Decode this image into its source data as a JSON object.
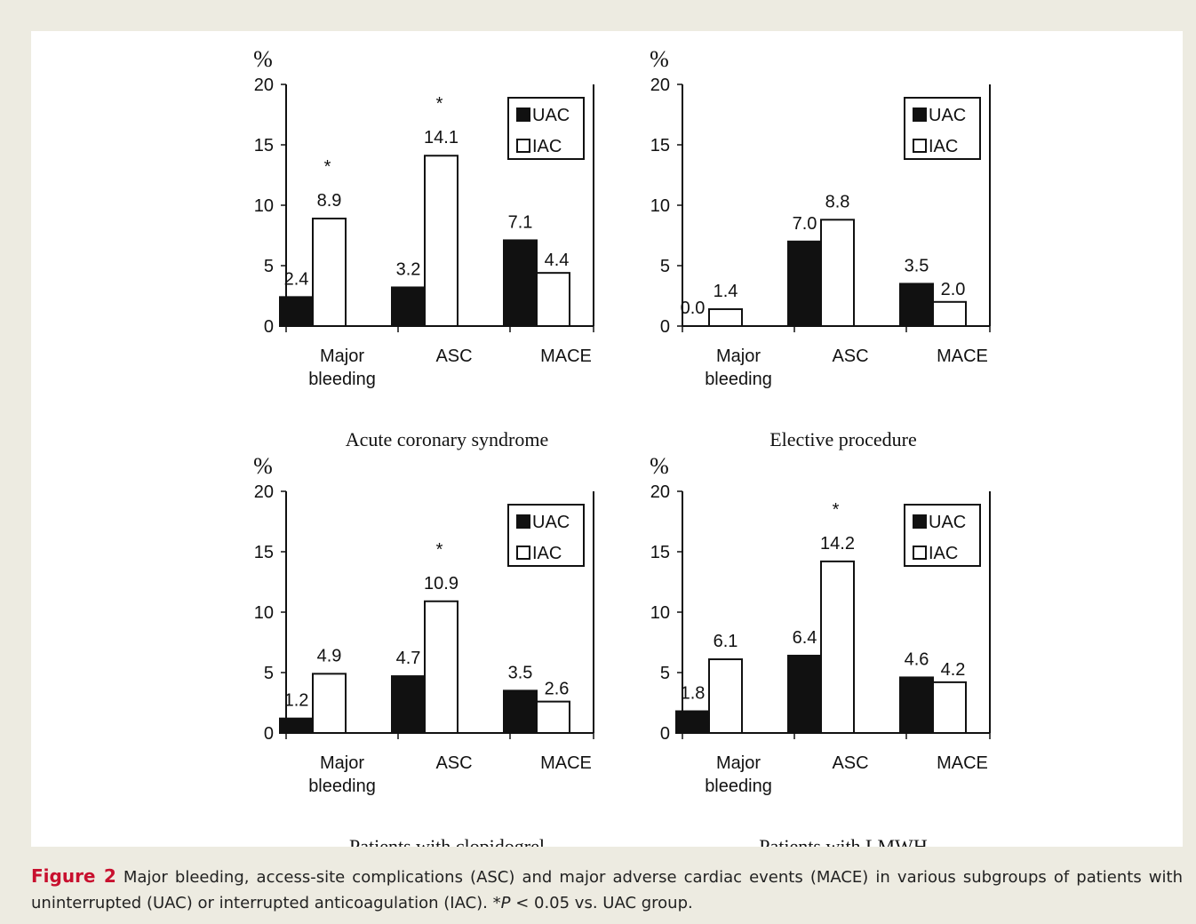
{
  "caption": {
    "label": "Figure 2",
    "text_before_p": " Major bleeding, access-site complications (ASC) and major adverse cardiac events (MACE) in various subgroups of patients with uninterrupted (UAC) or interrupted anticoagulation (IAC). *",
    "p_symbol": "P",
    "text_after_p": " < 0.05 vs. UAC group."
  },
  "colors": {
    "uac": "#111111",
    "iac": "#ffffff",
    "axis": "#111111",
    "background": "#edebe1"
  },
  "chart_data": [
    {
      "type": "bar",
      "title": "Acute coronary syndrome",
      "ylabel": "%",
      "ylim": [
        0,
        20
      ],
      "yticks": [
        0,
        5,
        10,
        15,
        20
      ],
      "categories": [
        "Major bleeding",
        "ASC",
        "MACE"
      ],
      "category_lines": [
        [
          "Major",
          "bleeding"
        ],
        [
          "ASC"
        ],
        [
          "MACE"
        ]
      ],
      "series": [
        {
          "name": "UAC",
          "values": [
            2.4,
            3.2,
            7.1
          ],
          "labels": [
            "2.4",
            "3.2",
            "7.1"
          ]
        },
        {
          "name": "IAC",
          "values": [
            8.9,
            14.1,
            4.4
          ],
          "labels": [
            "8.9",
            "14.1",
            "4.4"
          ]
        }
      ],
      "significant": [
        true,
        true,
        false
      ],
      "significance_marker": "*",
      "legend_position": "top-right",
      "grid": false
    },
    {
      "type": "bar",
      "title": "Elective procedure",
      "ylabel": "%",
      "ylim": [
        0,
        20
      ],
      "yticks": [
        0,
        5,
        10,
        15,
        20
      ],
      "categories": [
        "Major bleeding",
        "ASC",
        "MACE"
      ],
      "category_lines": [
        [
          "Major",
          "bleeding"
        ],
        [
          "ASC"
        ],
        [
          "MACE"
        ]
      ],
      "series": [
        {
          "name": "UAC",
          "values": [
            0.0,
            7.0,
            3.5
          ],
          "labels": [
            "0.0",
            "7.0",
            "3.5"
          ]
        },
        {
          "name": "IAC",
          "values": [
            1.4,
            8.8,
            2.0
          ],
          "labels": [
            "1.4",
            "8.8",
            "2.0"
          ]
        }
      ],
      "significant": [
        false,
        false,
        false
      ],
      "significance_marker": "*",
      "legend_position": "top-right",
      "grid": false
    },
    {
      "type": "bar",
      "title": "Patients with clopidogrel",
      "ylabel": "%",
      "ylim": [
        0,
        20
      ],
      "yticks": [
        0,
        5,
        10,
        15,
        20
      ],
      "categories": [
        "Major bleeding",
        "ASC",
        "MACE"
      ],
      "category_lines": [
        [
          "Major",
          "bleeding"
        ],
        [
          "ASC"
        ],
        [
          "MACE"
        ]
      ],
      "series": [
        {
          "name": "UAC",
          "values": [
            1.2,
            4.7,
            3.5
          ],
          "labels": [
            "1.2",
            "4.7",
            "3.5"
          ]
        },
        {
          "name": "IAC",
          "values": [
            4.9,
            10.9,
            2.6
          ],
          "labels": [
            "4.9",
            "10.9",
            "2.6"
          ]
        }
      ],
      "significant": [
        false,
        true,
        false
      ],
      "significance_marker": "*",
      "legend_position": "top-right",
      "grid": false
    },
    {
      "type": "bar",
      "title": "Patients with LMWH",
      "ylabel": "%",
      "ylim": [
        0,
        20
      ],
      "yticks": [
        0,
        5,
        10,
        15,
        20
      ],
      "categories": [
        "Major bleeding",
        "ASC",
        "MACE"
      ],
      "category_lines": [
        [
          "Major",
          "bleeding"
        ],
        [
          "ASC"
        ],
        [
          "MACE"
        ]
      ],
      "series": [
        {
          "name": "UAC",
          "values": [
            1.8,
            6.4,
            4.6
          ],
          "labels": [
            "1.8",
            "6.4",
            "4.6"
          ]
        },
        {
          "name": "IAC",
          "values": [
            6.1,
            14.2,
            4.2
          ],
          "labels": [
            "6.1",
            "14.2",
            "4.2"
          ]
        }
      ],
      "significant": [
        false,
        true,
        false
      ],
      "significance_marker": "*",
      "legend_position": "top-right",
      "grid": false
    }
  ]
}
